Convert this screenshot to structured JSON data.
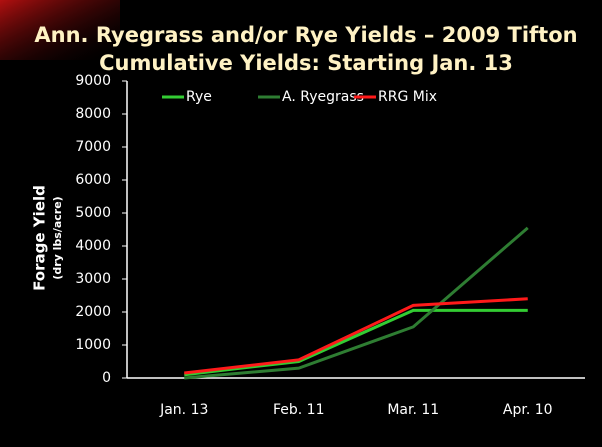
{
  "chart_data": {
    "type": "line",
    "title": "Ann. Ryegrass and/or Rye Yields – 2009 Tifton",
    "subtitle": "Cumulative Yields: Starting Jan. 13",
    "y_label": "Forage Yield",
    "y_label_sub": "(dry lbs/acre)",
    "categories": [
      "Jan. 13",
      "Feb. 11",
      "Mar. 11",
      "Apr. 10"
    ],
    "series": [
      {
        "name": "Rye",
        "color": "#33cc33",
        "values": [
          100,
          500,
          2050,
          2050
        ]
      },
      {
        "name": "A. Ryegrass",
        "color": "#2e7d32",
        "values": [
          0,
          300,
          1550,
          4550
        ]
      },
      {
        "name": "RRG Mix",
        "color": "#ff1a1a",
        "values": [
          150,
          550,
          2200,
          2400
        ]
      }
    ],
    "ylim": [
      0,
      9000
    ],
    "yticks": [
      0,
      1000,
      2000,
      3000,
      4000,
      5000,
      6000,
      7000,
      8000,
      9000
    ],
    "grid": false,
    "legend": "top"
  }
}
